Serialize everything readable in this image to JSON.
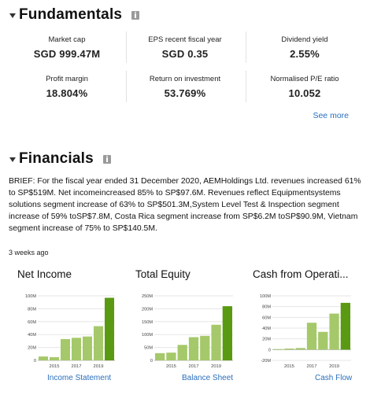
{
  "fundamentals": {
    "title": "Fundamentals",
    "metrics": [
      {
        "label": "Market cap",
        "value": "SGD 999.47M"
      },
      {
        "label": "EPS recent fiscal year",
        "value": "SGD 0.35"
      },
      {
        "label": "Dividend yield",
        "value": "2.55%"
      },
      {
        "label": "Profit margin",
        "value": "18.804%"
      },
      {
        "label": "Return on investment",
        "value": "53.769%"
      },
      {
        "label": "Normalised P/E ratio",
        "value": "10.052"
      }
    ],
    "see_more": "See more"
  },
  "financials": {
    "title": "Financials",
    "brief": "BRIEF: For the fiscal year ended 31 December 2020, AEMHoldings Ltd. revenues increased 61% to SP$519M. Net incomeincreased 85% to SP$97.6M. Revenues reflect Equipmentsystems solutions segment increase of 63% to SP$501.3M,System Level Test & Inspection segment increase of 59% toSP$7.8M, Costa Rica segment increase from SP$6.2M toSP$90.9M, Vietnam segment increase of 75% to SP$140.5M.",
    "time_ago": "3 weeks ago"
  },
  "colors": {
    "bar_light": "#a5c96a",
    "bar_dark": "#5a9a12",
    "link": "#2a6fbb"
  },
  "chart_data": [
    {
      "type": "bar",
      "title": "Net Income",
      "link": "Income Statement",
      "categories": [
        "2014",
        "2015",
        "2016",
        "2017",
        "2018",
        "2019",
        "2020"
      ],
      "tick_labels": [
        "2015",
        "2017",
        "2019"
      ],
      "values": [
        6,
        5,
        33,
        35,
        37,
        53,
        97
      ],
      "ylim": [
        0,
        100
      ],
      "yticks": [
        "100M",
        "80M",
        "60M",
        "40M",
        "20M",
        "0"
      ],
      "ytick_values": [
        100,
        80,
        60,
        40,
        20,
        0
      ]
    },
    {
      "type": "bar",
      "title": "Total Equity",
      "link": "Balance Sheet",
      "categories": [
        "2014",
        "2015",
        "2016",
        "2017",
        "2018",
        "2019",
        "2020"
      ],
      "tick_labels": [
        "2015",
        "2017",
        "2019"
      ],
      "values": [
        28,
        30,
        60,
        90,
        95,
        138,
        210
      ],
      "ylim": [
        0,
        250
      ],
      "yticks": [
        "250M",
        "200M",
        "150M",
        "100M",
        "50M",
        "0"
      ],
      "ytick_values": [
        250,
        200,
        150,
        100,
        50,
        0
      ]
    },
    {
      "type": "bar",
      "title": "Cash from Operati...",
      "link": "Cash Flow",
      "categories": [
        "2014",
        "2015",
        "2016",
        "2017",
        "2018",
        "2019",
        "2020"
      ],
      "tick_labels": [
        "2015",
        "2017",
        "2019"
      ],
      "values": [
        1,
        2,
        3,
        50,
        33,
        67,
        87
      ],
      "ylim": [
        -20,
        100
      ],
      "yticks": [
        "100M",
        "80M",
        "60M",
        "40M",
        "20M",
        "0",
        "-20M"
      ],
      "ytick_values": [
        100,
        80,
        60,
        40,
        20,
        0,
        -20
      ]
    }
  ]
}
